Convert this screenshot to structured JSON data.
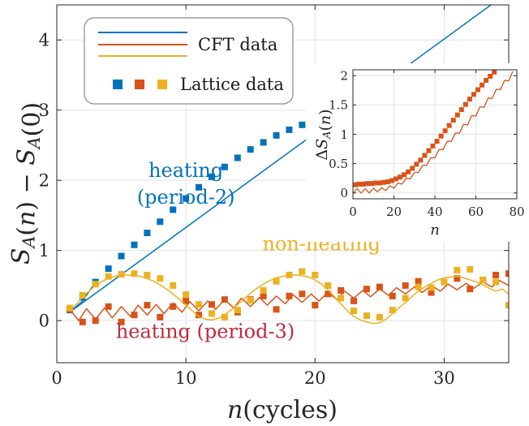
{
  "chart_data": [
    {
      "type": "scatter",
      "title": "",
      "xlabel": "n(cycles)",
      "ylabel": "S_A(n) − S_A(0)",
      "xlim": [
        0,
        35
      ],
      "ylim": [
        -0.6,
        4.5
      ],
      "xticks": [
        "0",
        "10",
        "20",
        "30"
      ],
      "yticks": [
        "0",
        "1",
        "2",
        "3",
        "4"
      ],
      "grid": true,
      "legend_position": "top-left",
      "legend": [
        {
          "label": "CFT data",
          "markers": "lines",
          "colors": [
            "#0072BD",
            "#D95319",
            "#EDB120"
          ]
        },
        {
          "label": "Lattice data",
          "markers": "squares",
          "colors": [
            "#0072BD",
            "#D95319",
            "#EDB120"
          ]
        }
      ],
      "annotations": [
        {
          "lines": [
            "heating",
            "(period-2)"
          ],
          "color": "#0072BD",
          "x": 10,
          "y": 2.05
        },
        {
          "lines": [
            "non-heating"
          ],
          "color": "#EDB120",
          "x": 20.5,
          "y": 1.0
        },
        {
          "lines": [
            "heating (period-3)"
          ],
          "color": "#C1293A",
          "x": 11.5,
          "y": -0.25
        }
      ],
      "series": [
        {
          "name": "heating (period-2)",
          "color": "#0072BD",
          "cft": {
            "x": [
              1,
              34
            ],
            "y": [
              0.12,
              4.55
            ],
            "x_break": [
              1,
              2,
              3
            ],
            "y_break": [
              0.12,
              0.28,
              0.55
            ]
          },
          "lattice": {
            "x": [
              1,
              2,
              3,
              4,
              5,
              6,
              7,
              8,
              9,
              10,
              11,
              12,
              13,
              14,
              15,
              16,
              17,
              18,
              19
            ],
            "y": [
              0.15,
              0.33,
              0.55,
              0.74,
              0.92,
              1.08,
              1.25,
              1.41,
              1.58,
              1.74,
              1.9,
              2.05,
              2.19,
              2.32,
              2.44,
              2.54,
              2.64,
              2.72,
              2.79
            ]
          }
        },
        {
          "name": "heating (period-3)",
          "color": "#D95319",
          "cft": {
            "x": [
              1,
              1.7,
              2.3,
              3,
              3.7,
              4.3,
              5,
              5.7,
              6.3,
              7,
              7.7,
              8.3,
              9,
              9.7,
              10.3,
              11,
              11.7,
              12.3,
              13,
              13.7,
              14.3,
              15,
              15.7,
              16.3,
              17,
              17.7,
              18.3,
              19,
              19.7,
              20.3,
              21,
              21.7,
              22.3,
              23,
              23.7,
              24.3,
              25,
              25.7,
              26.3,
              27,
              27.7,
              28.3,
              29,
              29.7,
              30.3,
              31,
              31.7,
              32.3,
              33,
              33.7,
              34.3,
              35
            ],
            "y": [
              0.16,
              0.0,
              0.17,
              0.02,
              0.18,
              0.04,
              0.2,
              0.06,
              0.22,
              0.08,
              0.23,
              0.1,
              0.25,
              0.12,
              0.27,
              0.14,
              0.28,
              0.16,
              0.3,
              0.18,
              0.32,
              0.2,
              0.33,
              0.22,
              0.35,
              0.24,
              0.37,
              0.26,
              0.38,
              0.28,
              0.4,
              0.3,
              0.42,
              0.32,
              0.43,
              0.34,
              0.45,
              0.36,
              0.47,
              0.38,
              0.48,
              0.4,
              0.5,
              0.42,
              0.52,
              0.44,
              0.53,
              0.46,
              0.55,
              0.48,
              0.57,
              0.5
            ]
          },
          "lattice": {
            "x": [
              1,
              2,
              3,
              4,
              5,
              6,
              7,
              8,
              9,
              10,
              11,
              12,
              13,
              14,
              15,
              16,
              17,
              18,
              19,
              20,
              21,
              22,
              23,
              24,
              25,
              26,
              27,
              28,
              29,
              30,
              31,
              32,
              33,
              34,
              35
            ],
            "y": [
              0.16,
              -0.02,
              0.0,
              0.2,
              -0.02,
              0.08,
              0.22,
              0.05,
              0.2,
              0.28,
              0.08,
              0.23,
              0.3,
              0.12,
              0.3,
              0.35,
              0.16,
              0.35,
              0.38,
              0.22,
              0.38,
              0.43,
              0.28,
              0.45,
              0.48,
              0.35,
              0.5,
              0.56,
              0.4,
              0.55,
              0.6,
              0.45,
              0.58,
              0.65,
              0.67
            ]
          }
        },
        {
          "name": "non-heating",
          "color": "#EDB120",
          "cft": {
            "x": [
              1,
              1.5,
              2,
              2.5,
              3,
              3.5,
              4,
              4.5,
              5,
              5.5,
              6,
              6.5,
              7,
              7.5,
              8,
              8.5,
              9,
              9.5,
              10,
              10.5,
              11,
              11.5,
              12,
              12.5,
              13,
              13.5,
              14,
              14.5,
              15,
              15.5,
              16,
              16.5,
              17,
              17.5,
              18,
              18.5,
              19,
              19.5,
              20,
              20.5,
              21,
              21.5,
              22,
              22.5,
              23,
              23.5,
              24,
              24.5,
              25,
              25.5,
              26,
              26.5,
              27,
              27.5,
              28,
              28.5,
              29,
              29.5,
              30,
              30.5,
              31,
              31.5,
              32,
              32.5,
              33,
              33.5,
              34,
              34.5,
              35
            ],
            "y": [
              0.14,
              0.23,
              0.34,
              0.42,
              0.5,
              0.56,
              0.6,
              0.63,
              0.65,
              0.65,
              0.64,
              0.63,
              0.6,
              0.56,
              0.51,
              0.45,
              0.38,
              0.3,
              0.22,
              0.14,
              0.06,
              0.02,
              0.01,
              0.03,
              0.08,
              0.15,
              0.23,
              0.31,
              0.39,
              0.46,
              0.52,
              0.57,
              0.61,
              0.63,
              0.65,
              0.65,
              0.64,
              0.62,
              0.58,
              0.52,
              0.44,
              0.34,
              0.24,
              0.14,
              0.06,
              0.01,
              -0.02,
              -0.04,
              -0.03,
              0.02,
              0.1,
              0.18,
              0.26,
              0.34,
              0.42,
              0.48,
              0.53,
              0.58,
              0.61,
              0.62,
              0.63,
              0.61,
              0.58,
              0.55,
              0.51,
              0.46,
              0.42,
              0.45,
              0.38
            ]
          },
          "lattice": {
            "x": [
              1,
              2,
              3,
              4,
              5,
              6,
              7,
              8,
              9,
              10,
              11,
              12,
              13,
              14,
              15,
              16,
              17,
              18,
              19,
              20,
              21,
              22,
              23,
              24,
              25,
              26,
              27,
              28,
              29,
              30,
              31,
              32,
              33,
              34,
              35
            ],
            "y": [
              0.18,
              0.36,
              0.52,
              0.63,
              0.66,
              0.67,
              0.65,
              0.6,
              0.5,
              0.37,
              0.23,
              0.1,
              0.05,
              0.15,
              0.29,
              0.43,
              0.56,
              0.65,
              0.7,
              0.65,
              0.5,
              0.32,
              0.14,
              0.07,
              0.05,
              0.15,
              0.32,
              0.48,
              0.47,
              0.55,
              0.72,
              0.73,
              0.58,
              0.55,
              0.22
            ]
          }
        }
      ]
    },
    {
      "type": "scatter",
      "title": "",
      "xlabel": "n",
      "ylabel": "ΔS_A(n)",
      "xlim": [
        0,
        80
      ],
      "ylim": [
        -0.1,
        2.1
      ],
      "xticks": [
        "0",
        "20",
        "40",
        "60",
        "80"
      ],
      "yticks": [
        "0",
        "0.5",
        "1",
        "1.5",
        "2"
      ],
      "grid": true,
      "series": [
        {
          "color": "#D95319",
          "cft": {
            "x": [
              0,
              2,
              4,
              6,
              8,
              10,
              12,
              14,
              16,
              18,
              20,
              22,
              24,
              26,
              28,
              30,
              32,
              34,
              36,
              38,
              40,
              42,
              44,
              46,
              48,
              50,
              52,
              54,
              56,
              58,
              60,
              62,
              64,
              66,
              68,
              70,
              72,
              74,
              76,
              78
            ],
            "y": [
              0.0,
              0.07,
              0.0,
              0.07,
              0.0,
              0.08,
              0.02,
              0.09,
              0.04,
              0.12,
              0.08,
              0.17,
              0.15,
              0.25,
              0.24,
              0.35,
              0.35,
              0.47,
              0.47,
              0.6,
              0.6,
              0.74,
              0.74,
              0.88,
              0.88,
              1.02,
              1.02,
              1.17,
              1.16,
              1.32,
              1.31,
              1.47,
              1.46,
              1.62,
              1.61,
              1.77,
              1.76,
              1.92,
              1.91,
              2.07
            ]
          },
          "lattice": {
            "x": [
              1,
              3,
              5,
              7,
              9,
              11,
              13,
              15,
              17,
              19,
              21,
              23,
              25,
              27,
              29,
              31,
              33,
              35,
              37,
              39,
              41,
              43,
              45,
              47,
              49,
              51,
              53,
              55,
              57,
              59,
              61,
              63,
              65,
              67,
              69
            ],
            "y": [
              0.14,
              0.15,
              0.15,
              0.16,
              0.16,
              0.17,
              0.17,
              0.18,
              0.19,
              0.21,
              0.24,
              0.27,
              0.31,
              0.36,
              0.42,
              0.49,
              0.56,
              0.64,
              0.72,
              0.8,
              0.88,
              0.97,
              1.06,
              1.15,
              1.24,
              1.33,
              1.42,
              1.51,
              1.6,
              1.68,
              1.76,
              1.84,
              1.92,
              1.99,
              2.06
            ]
          }
        }
      ]
    }
  ]
}
